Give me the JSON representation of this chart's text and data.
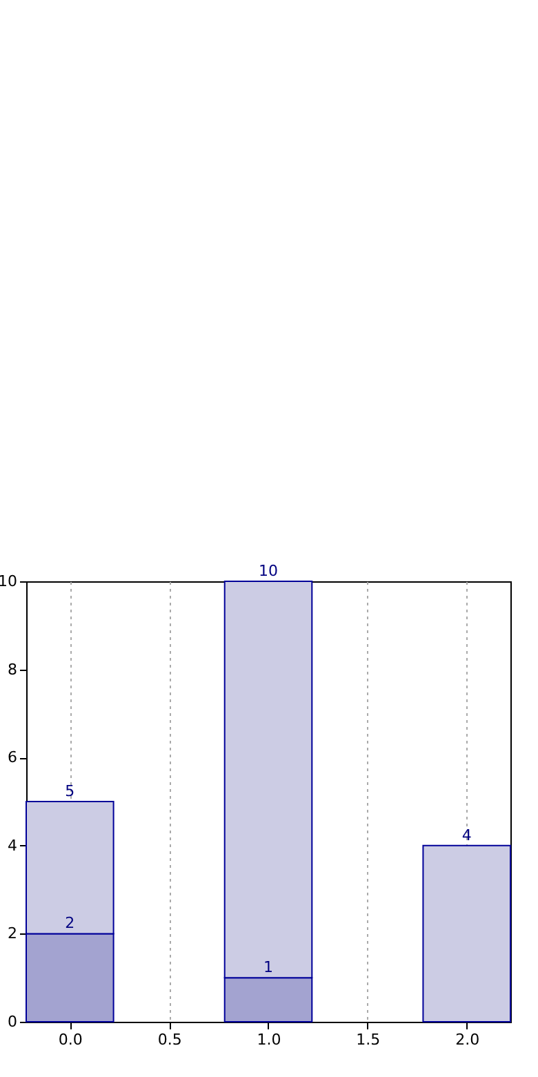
{
  "chart_data": {
    "type": "bar",
    "x": [
      0,
      1,
      2
    ],
    "stacked": true,
    "series": [
      {
        "color": "#a3a3d0",
        "values": [
          2,
          1,
          null
        ],
        "value_labels": [
          "2",
          "1",
          null
        ]
      },
      {
        "color": "#ccccE4",
        "values": [
          3,
          9,
          4
        ]
      }
    ],
    "totals": [
      "5",
      "10",
      "4"
    ],
    "xlim": [
      -0.22,
      2.22
    ],
    "xticks": [
      {
        "value": 0,
        "label": "0.0"
      },
      {
        "value": 0.5,
        "label": "0.5"
      },
      {
        "value": 1,
        "label": "1.0"
      },
      {
        "value": 1.5,
        "label": "1.5"
      },
      {
        "value": 2,
        "label": "2.0"
      }
    ],
    "ylim": [
      0,
      10
    ],
    "yticks": [
      0,
      2,
      4,
      6,
      8,
      10
    ],
    "grid": "x",
    "legend": false
  }
}
